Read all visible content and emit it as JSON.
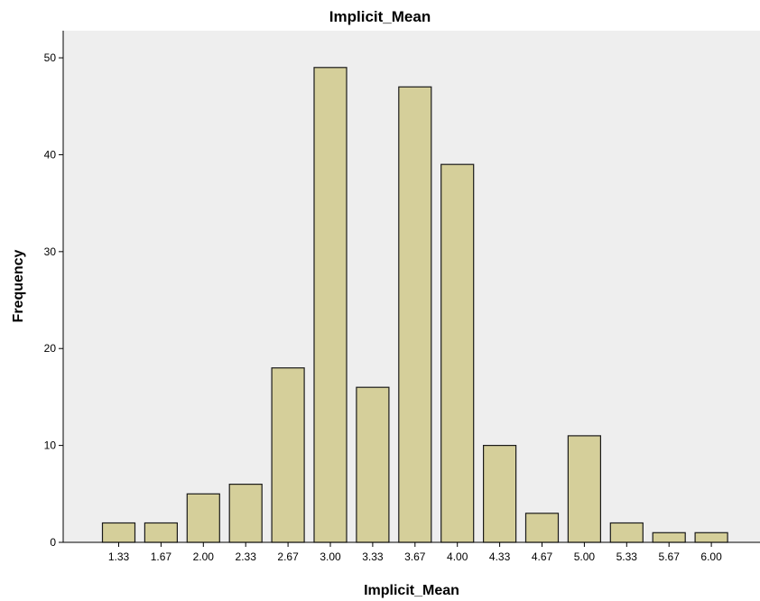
{
  "chart_data": {
    "type": "bar",
    "title": "Implicit_Mean",
    "xlabel": "Implicit_Mean",
    "ylabel": "Frequency",
    "categories": [
      "1.33",
      "1.67",
      "2.00",
      "2.33",
      "2.67",
      "3.00",
      "3.33",
      "3.67",
      "4.00",
      "4.33",
      "4.67",
      "5.00",
      "5.33",
      "5.67",
      "6.00"
    ],
    "values": [
      2,
      2,
      5,
      6,
      18,
      49,
      16,
      47,
      39,
      10,
      3,
      11,
      2,
      1,
      1
    ],
    "ylim": [
      0,
      52.8
    ],
    "yticks": [
      0,
      10,
      20,
      30,
      40,
      50
    ],
    "grid": false,
    "colors": {
      "bar_fill": "#d5cf9a",
      "bar_stroke": "#1a1a1a",
      "plot_background": "#eeeeee"
    }
  }
}
